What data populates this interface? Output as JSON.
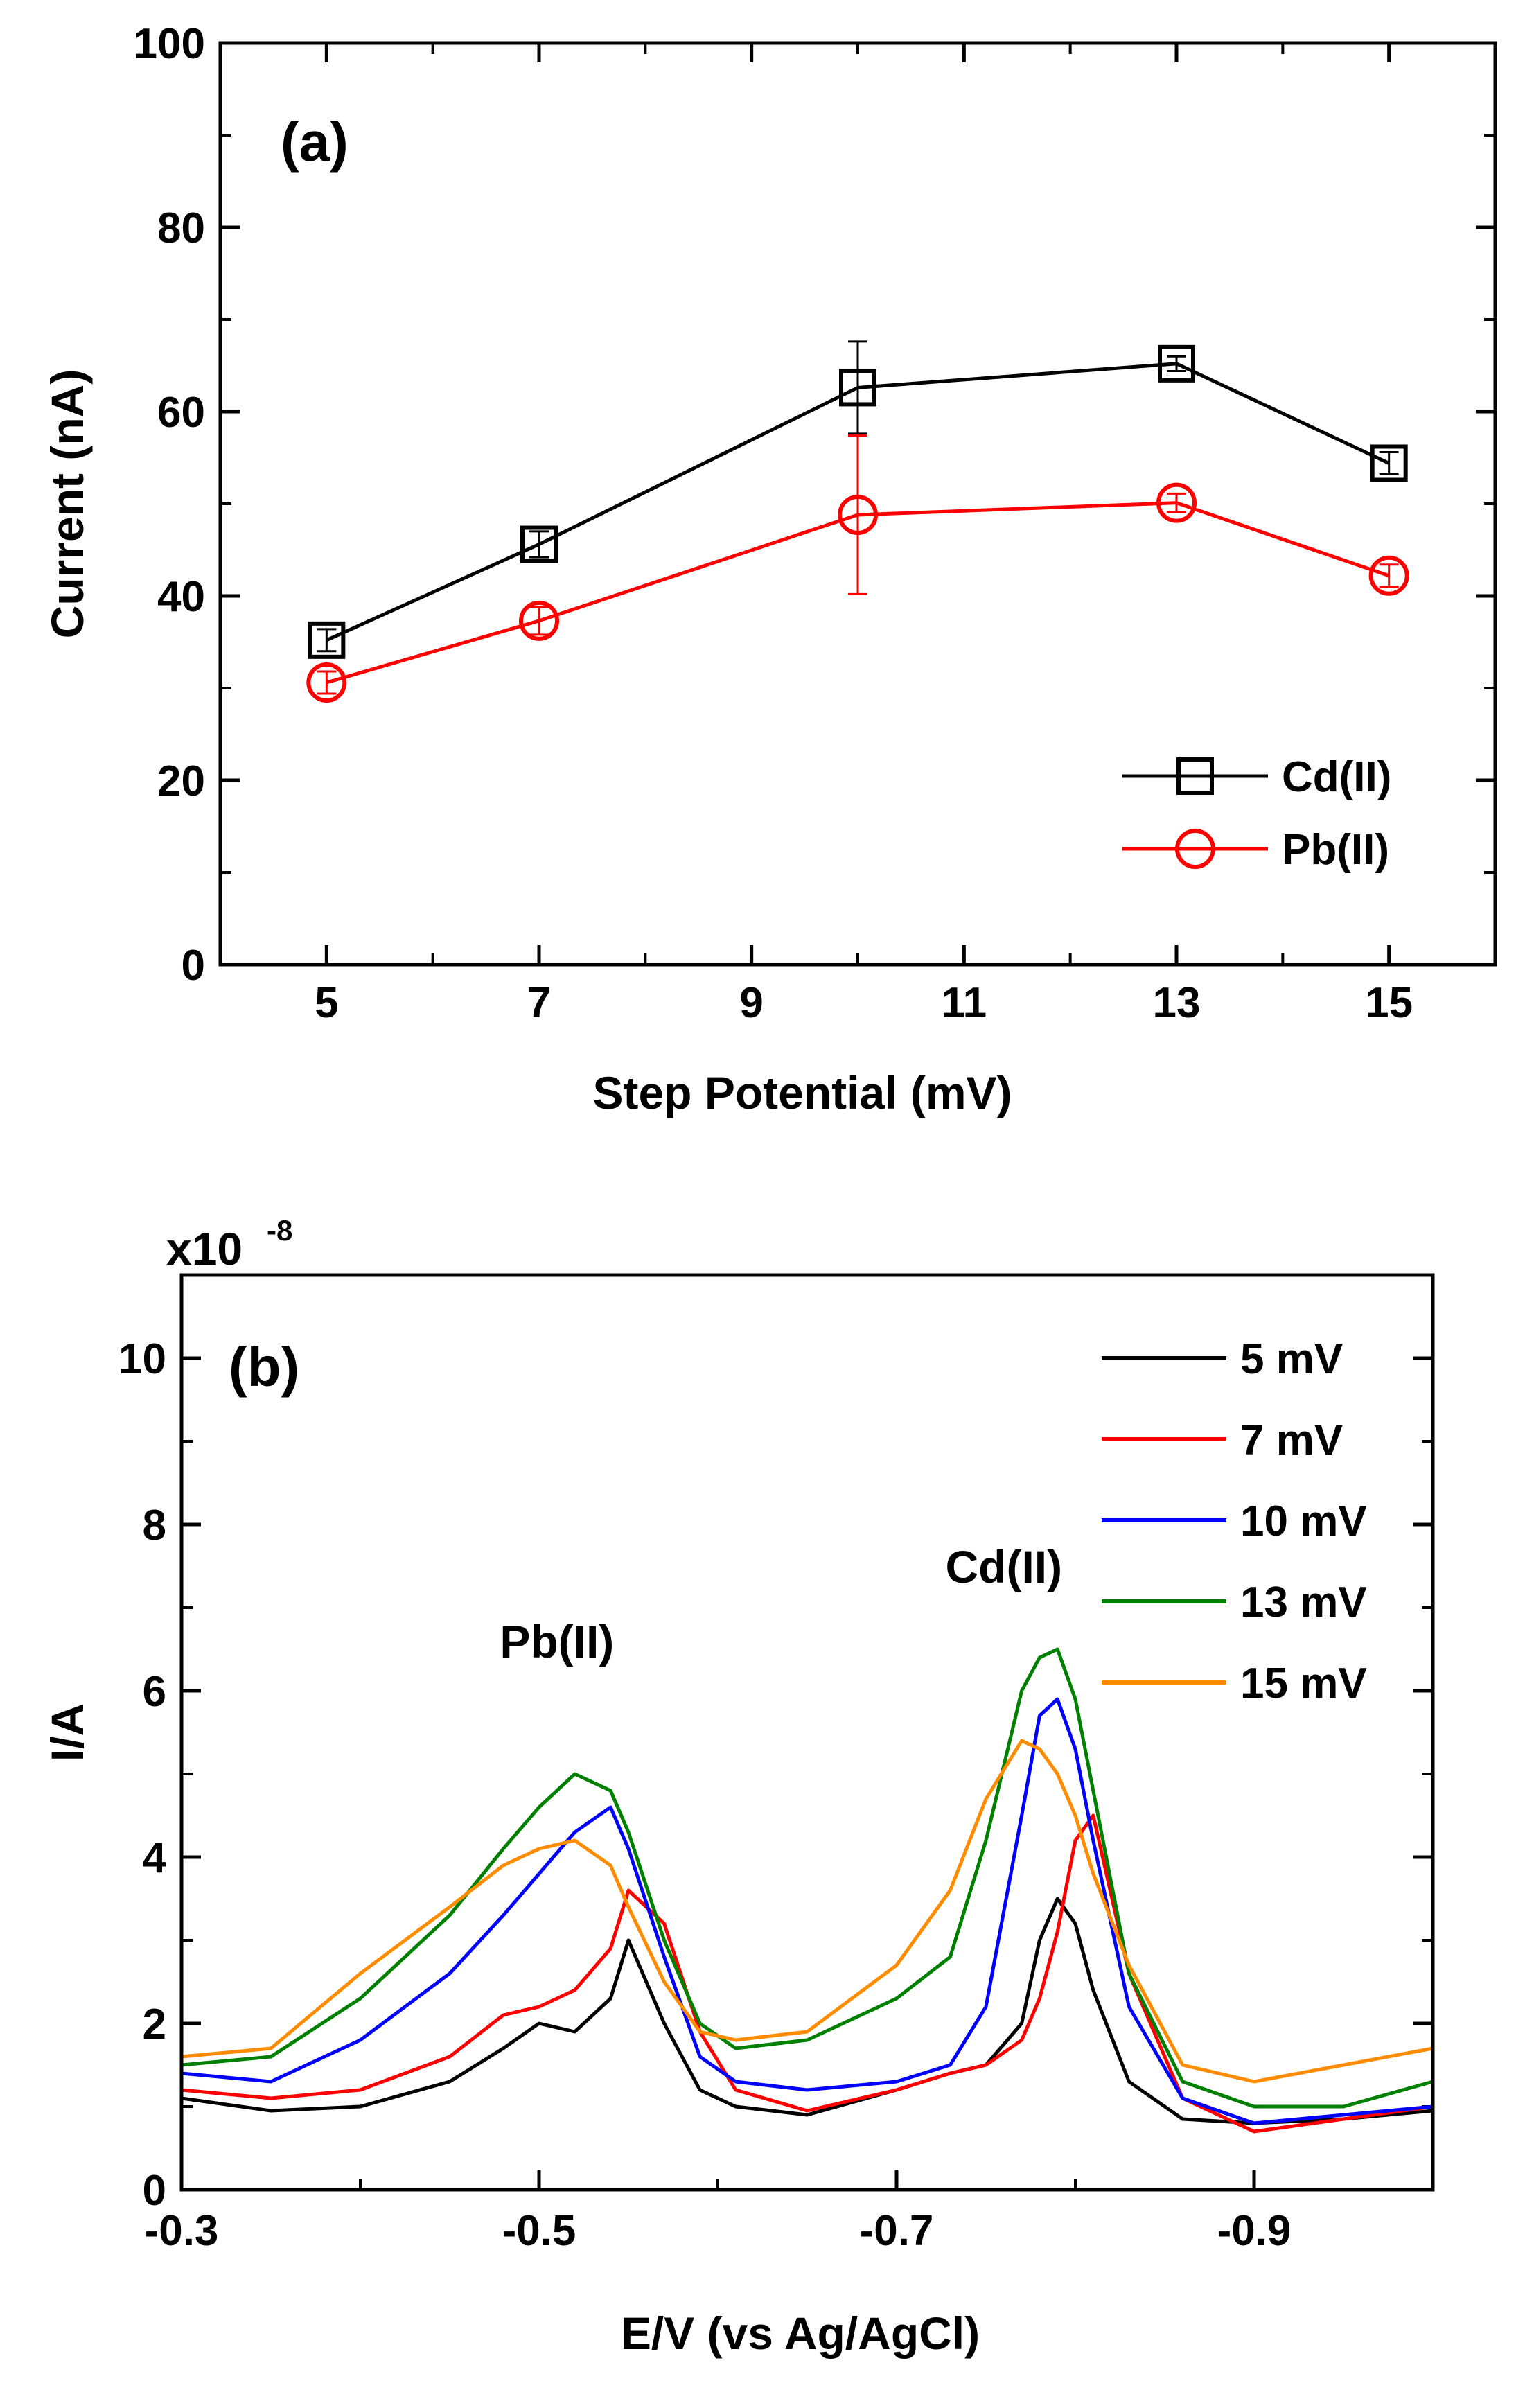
{
  "chart_data": [
    {
      "type": "line",
      "panel_label": "(a)",
      "xlabel": "Step Potential (mV)",
      "ylabel": "Current (nA)",
      "x": [
        5,
        7,
        10,
        13,
        15
      ],
      "xlim": [
        4,
        16
      ],
      "ylim": [
        0,
        100
      ],
      "xticks": [
        "5",
        "7",
        "9",
        "11",
        "13",
        "15"
      ],
      "yticks": [
        "0",
        "20",
        "40",
        "60",
        "80",
        "100"
      ],
      "legend_position": "bottom-right",
      "series": [
        {
          "name": "Cd(II)",
          "color": "#000000",
          "marker": "square",
          "values": [
            35.2,
            45.6,
            62.6,
            65.2,
            54.4
          ],
          "error": [
            1.2,
            1.4,
            5.0,
            0.8,
            1.2
          ]
        },
        {
          "name": "Pb(II)",
          "color": "#ff0000",
          "marker": "circle",
          "values": [
            30.6,
            37.3,
            48.8,
            50.1,
            42.2
          ],
          "error": [
            1.2,
            1.5,
            8.6,
            1.0,
            1.2
          ]
        }
      ]
    },
    {
      "type": "line",
      "panel_label": "(b)",
      "xlabel": "E/V (vs Ag/AgCl)",
      "ylabel": "I/A",
      "multiplier": "x10",
      "multiplier_exp": "-8",
      "xlim": [
        -0.3,
        -1.0
      ],
      "ylim": [
        0,
        11
      ],
      "xticks": [
        "-0.3",
        "-0.5",
        "-0.7",
        "-0.9"
      ],
      "yticks": [
        "0",
        "2",
        "4",
        "6",
        "8",
        "10"
      ],
      "legend_position": "top-right",
      "annotations": [
        "Pb(II)",
        "Cd(II)"
      ],
      "x": [
        -0.3,
        -0.35,
        -0.4,
        -0.45,
        -0.48,
        -0.5,
        -0.52,
        -0.54,
        -0.55,
        -0.57,
        -0.59,
        -0.61,
        -0.65,
        -0.7,
        -0.73,
        -0.75,
        -0.77,
        -0.78,
        -0.79,
        -0.8,
        -0.81,
        -0.83,
        -0.86,
        -0.9,
        -0.95,
        -1.0
      ],
      "series": [
        {
          "name": "5 mV",
          "color": "#000000",
          "values": [
            1.1,
            0.95,
            1.0,
            1.3,
            1.7,
            2.0,
            1.9,
            2.3,
            3.0,
            2.0,
            1.2,
            1.0,
            0.9,
            1.2,
            1.4,
            1.5,
            2.0,
            3.0,
            3.5,
            3.2,
            2.4,
            1.3,
            0.85,
            0.8,
            0.85,
            0.95
          ]
        },
        {
          "name": "7 mV",
          "color": "#ff0000",
          "values": [
            1.2,
            1.1,
            1.2,
            1.6,
            2.1,
            2.2,
            2.4,
            2.9,
            3.6,
            3.2,
            1.9,
            1.2,
            0.95,
            1.2,
            1.4,
            1.5,
            1.8,
            2.3,
            3.1,
            4.2,
            4.5,
            2.6,
            1.1,
            0.7,
            0.85,
            1.0
          ]
        },
        {
          "name": "10 mV",
          "color": "#0000ff",
          "values": [
            1.4,
            1.3,
            1.8,
            2.6,
            3.3,
            3.8,
            4.3,
            4.6,
            4.1,
            2.8,
            1.6,
            1.3,
            1.2,
            1.3,
            1.5,
            2.2,
            4.5,
            5.7,
            5.9,
            5.3,
            4.2,
            2.2,
            1.1,
            0.8,
            0.9,
            1.0
          ]
        },
        {
          "name": "13 mV",
          "color": "#008000",
          "values": [
            1.5,
            1.6,
            2.3,
            3.3,
            4.1,
            4.6,
            5.0,
            4.8,
            4.3,
            3.0,
            2.0,
            1.7,
            1.8,
            2.3,
            2.8,
            4.2,
            6.0,
            6.4,
            6.5,
            5.9,
            4.8,
            2.6,
            1.3,
            1.0,
            1.0,
            1.3
          ]
        },
        {
          "name": "15 mV",
          "color": "#ff8c00",
          "values": [
            1.6,
            1.7,
            2.6,
            3.4,
            3.9,
            4.1,
            4.2,
            3.9,
            3.4,
            2.5,
            1.9,
            1.8,
            1.9,
            2.7,
            3.6,
            4.7,
            5.4,
            5.3,
            5.0,
            4.5,
            3.8,
            2.7,
            1.5,
            1.3,
            1.5,
            1.7
          ]
        }
      ]
    }
  ]
}
